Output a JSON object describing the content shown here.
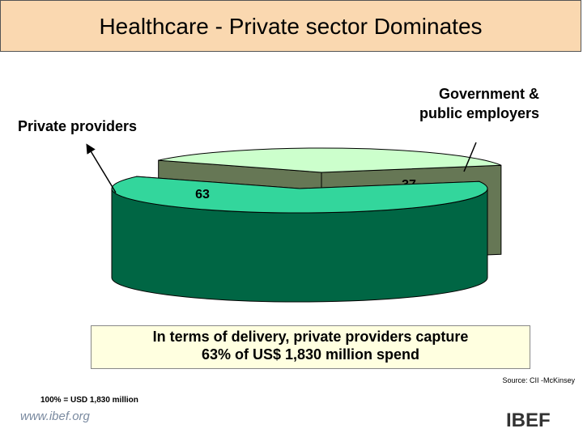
{
  "chart_data": {
    "type": "pie",
    "title": "Healthcare - Private sector Dominates",
    "categories": [
      "Private providers",
      "Government & public employers"
    ],
    "values": [
      63,
      37
    ],
    "colors": [
      "#33d69c",
      "#ccffcc"
    ],
    "depth_colors": [
      "#006644",
      "#667755"
    ],
    "callout": "In terms of delivery, private providers capture 63% of US$ 1,830 million spend",
    "source": "Source: CII -McKinsey",
    "footnote": "100% = USD 1,830 million"
  },
  "footer": {
    "url": "www.ibef.org",
    "logo": "IBEF"
  }
}
